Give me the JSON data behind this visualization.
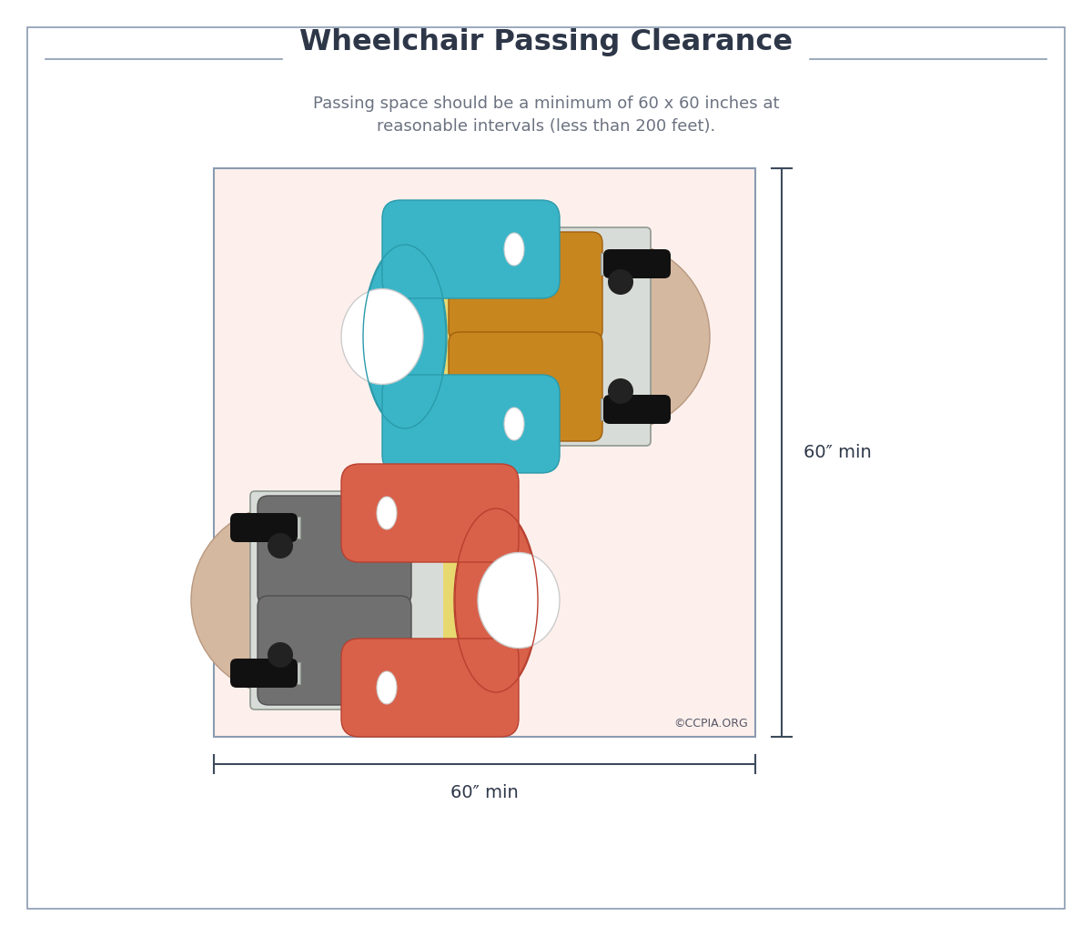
{
  "title": "Wheelchair Passing Clearance",
  "subtitle_line1": "Passing space should be a minimum of 60 x 60 inches at",
  "subtitle_line2": "reasonable intervals (less than 200 feet).",
  "dim_h": "60″ min",
  "dim_v": "60″ min",
  "copyright": "©CCPIA.ORG",
  "bg_color": "#ffffff",
  "panel_bg": "#fdf0ec",
  "border_color": "#8a9bb0",
  "title_color": "#2d3748",
  "subtitle_color": "#6b7280",
  "dim_color": "#2d3748",
  "teal": "#3ab5c8",
  "teal_dark": "#2a9aaa",
  "orange": "#c8861e",
  "orange_dark": "#a06010",
  "coral": "#d9614a",
  "coral_dark": "#b84030",
  "gray_seat": "#707070",
  "gray_seat_dark": "#505050",
  "gray_frame": "#c0c4c0",
  "gray_frame_dark": "#909890",
  "gray_light": "#d8dcd8",
  "black_wheel": "#111111",
  "dark_wheel": "#222222",
  "yellow": "#e8d870",
  "white": "#ffffff",
  "skin": "#d4b8a0",
  "skin_dark": "#b89880"
}
